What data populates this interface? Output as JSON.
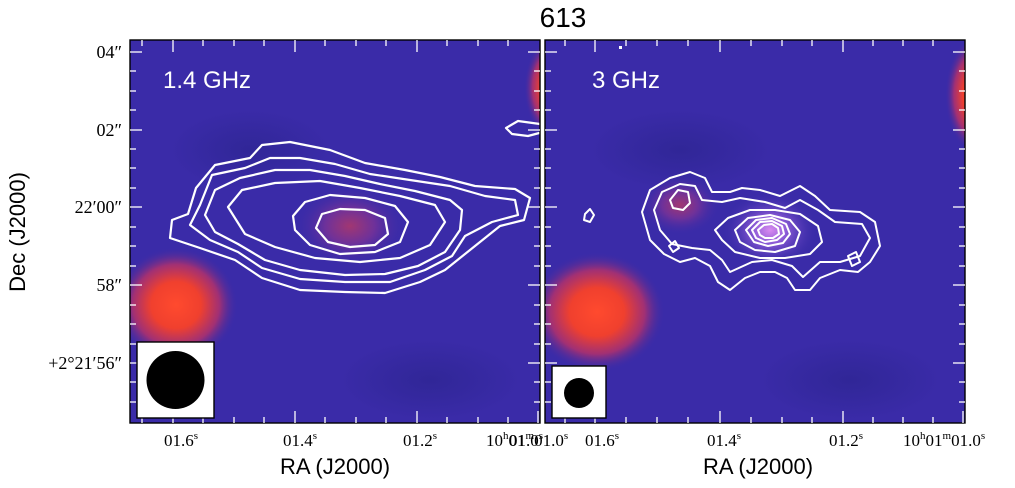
{
  "figure": {
    "title": "613",
    "ylabel": "Dec (J2000)",
    "colors": {
      "map_background": "#3a2ba8",
      "source_hot": "#ff4a2e",
      "contour": "#ffffff",
      "beam": "#000000"
    },
    "panels": [
      {
        "band_label": "1.4 GHz",
        "xlabel": "RA (J2000)",
        "ra_ticks": [
          {
            "label_base": "01.6",
            "label_sup": "s"
          },
          {
            "label_base": "01.4",
            "label_sup": "s"
          },
          {
            "label_base": "01.2",
            "label_sup": "s"
          },
          {
            "label_h": "10",
            "label_m": "01",
            "label_s": "01.0"
          }
        ],
        "dec_ticks": [
          {
            "label": "04″"
          },
          {
            "label": "02″"
          },
          {
            "label": "22′00″"
          },
          {
            "label": "58″"
          },
          {
            "label": "+2°21′56″"
          }
        ],
        "beam_shape": "large circle",
        "contour_levels": 6
      },
      {
        "band_label": "3 GHz",
        "xlabel": "RA (J2000)",
        "ra_ticks": [
          {
            "label_base": "01.6",
            "label_sup": "s"
          },
          {
            "label_base": "01.4",
            "label_sup": "s"
          },
          {
            "label_base": "01.2",
            "label_sup": "s"
          },
          {
            "label_h": "10",
            "label_m": "01",
            "label_s": "01.0"
          }
        ],
        "beam_shape": "small circle",
        "contour_levels": 7
      }
    ]
  }
}
